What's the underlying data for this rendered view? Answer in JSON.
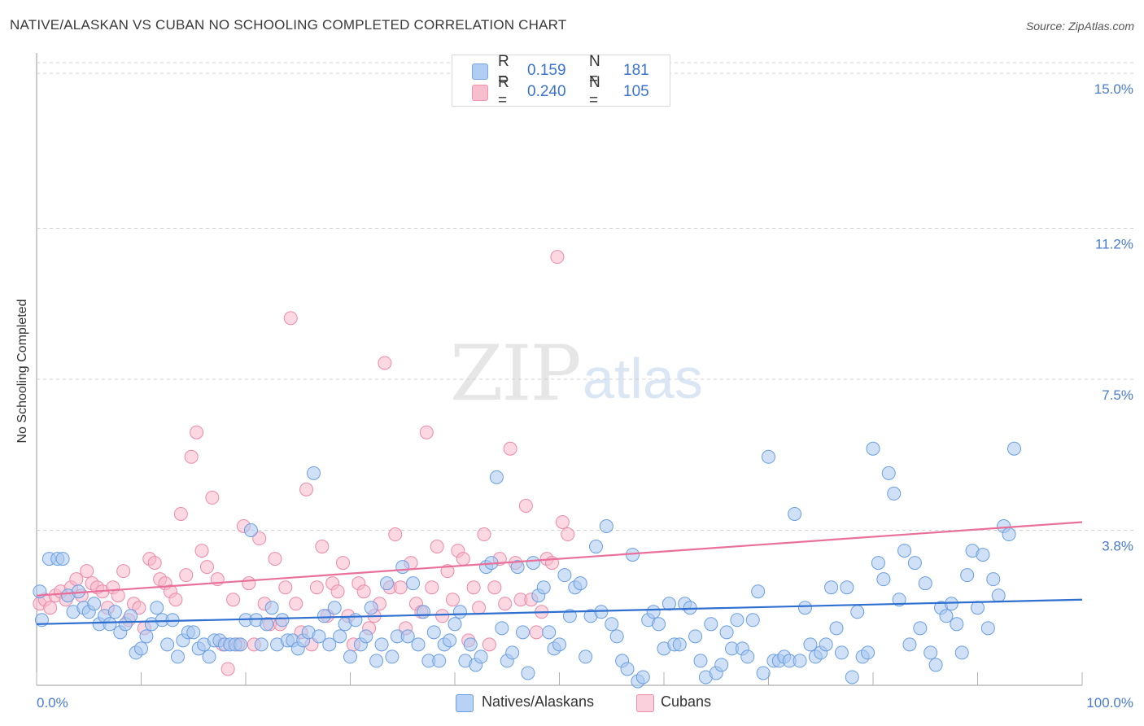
{
  "title": "NATIVE/ALASKAN VS CUBAN NO SCHOOLING COMPLETED CORRELATION CHART",
  "source": "Source: ZipAtlas.com",
  "watermark": {
    "left": "ZIP",
    "right": "atlas"
  },
  "legend": {
    "rows": [
      {
        "r_label": "R =",
        "r_value": "0.159",
        "n_label": "N =",
        "n_value": "181",
        "color": "#a9c8f0"
      },
      {
        "r_label": "R =",
        "r_value": "0.240",
        "n_label": "N =",
        "n_value": "105",
        "color": "#f7b8cb"
      }
    ]
  },
  "bottom_legend": [
    "Natives/Alaskans",
    "Cubans"
  ],
  "chart_data": {
    "type": "scatter",
    "title": "NATIVE/ALASKAN VS CUBAN NO SCHOOLING COMPLETED CORRELATION CHART",
    "xlabel": "",
    "ylabel": "No Schooling Completed",
    "xlim": [
      0,
      100
    ],
    "ylim": [
      0,
      15.5
    ],
    "y_ticks": [
      3.8,
      7.5,
      11.2,
      15.0
    ],
    "y_tick_labels": [
      "3.8%",
      "7.5%",
      "11.2%",
      "15.0%"
    ],
    "x_tick_labels": [
      "0.0%",
      "100.0%"
    ],
    "grid": "dashed horizontal",
    "legend_position": "top-center",
    "colors": {
      "natives": "#6a9ee0",
      "natives_fill": "#a9c8f0",
      "cubans": "#ec8aa8",
      "cubans_fill": "#f7b8cb",
      "natives_line": "#2e6fd0",
      "cubans_line": "#e8709a"
    },
    "series": [
      {
        "name": "Natives/Alaskans",
        "trend": [
          [
            0,
            1.5
          ],
          [
            100,
            2.1
          ]
        ],
        "points": [
          [
            0.3,
            2.3
          ],
          [
            0.5,
            1.6
          ],
          [
            1.2,
            3.1
          ],
          [
            2,
            3.1
          ],
          [
            2.5,
            3.1
          ],
          [
            3,
            2.2
          ],
          [
            3.5,
            1.8
          ],
          [
            4,
            2.3
          ],
          [
            4.5,
            1.9
          ],
          [
            5,
            1.8
          ],
          [
            5.5,
            2.0
          ],
          [
            6,
            1.5
          ],
          [
            6.5,
            1.7
          ],
          [
            7,
            1.5
          ],
          [
            7.5,
            1.8
          ],
          [
            8,
            1.3
          ],
          [
            8.5,
            1.5
          ],
          [
            9,
            1.7
          ],
          [
            9.5,
            0.8
          ],
          [
            10,
            0.9
          ],
          [
            10.5,
            1.2
          ],
          [
            11,
            1.5
          ],
          [
            11.5,
            1.9
          ],
          [
            12,
            1.6
          ],
          [
            12.5,
            1.0
          ],
          [
            13,
            1.6
          ],
          [
            13.5,
            0.7
          ],
          [
            14,
            1.1
          ],
          [
            14.5,
            1.3
          ],
          [
            15,
            1.3
          ],
          [
            15.5,
            0.9
          ],
          [
            16,
            1.0
          ],
          [
            16.5,
            0.7
          ],
          [
            17,
            1.1
          ],
          [
            17.5,
            1.1
          ],
          [
            18,
            1.0
          ],
          [
            18.5,
            1.0
          ],
          [
            19,
            1.0
          ],
          [
            19.5,
            1.0
          ],
          [
            20,
            1.6
          ],
          [
            20.5,
            3.8
          ],
          [
            21,
            1.6
          ],
          [
            21.5,
            1.0
          ],
          [
            22,
            1.5
          ],
          [
            22.5,
            1.9
          ],
          [
            23,
            1.0
          ],
          [
            23.5,
            1.6
          ],
          [
            24,
            1.1
          ],
          [
            24.5,
            1.1
          ],
          [
            25,
            0.9
          ],
          [
            25.5,
            1.1
          ],
          [
            26,
            1.3
          ],
          [
            26.5,
            5.2
          ],
          [
            27,
            1.2
          ],
          [
            27.5,
            1.7
          ],
          [
            28,
            1.0
          ],
          [
            28.5,
            1.9
          ],
          [
            29,
            1.2
          ],
          [
            29.5,
            1.5
          ],
          [
            30,
            0.7
          ],
          [
            30.5,
            1.6
          ],
          [
            31,
            1.0
          ],
          [
            31.5,
            1.2
          ],
          [
            32,
            1.9
          ],
          [
            32.5,
            0.6
          ],
          [
            33,
            1.0
          ],
          [
            33.5,
            2.5
          ],
          [
            34,
            0.7
          ],
          [
            34.5,
            1.2
          ],
          [
            35,
            2.9
          ],
          [
            35.5,
            1.2
          ],
          [
            36,
            2.5
          ],
          [
            36.5,
            1.0
          ],
          [
            37,
            1.8
          ],
          [
            37.5,
            0.6
          ],
          [
            38,
            1.3
          ],
          [
            38.5,
            0.6
          ],
          [
            39,
            1.0
          ],
          [
            39.5,
            1.1
          ],
          [
            40,
            1.5
          ],
          [
            40.5,
            1.8
          ],
          [
            41,
            0.6
          ],
          [
            41.5,
            1.0
          ],
          [
            42,
            0.5
          ],
          [
            42.5,
            0.7
          ],
          [
            43,
            2.9
          ],
          [
            43.5,
            3.0
          ],
          [
            44,
            5.1
          ],
          [
            44.5,
            1.4
          ],
          [
            45,
            0.6
          ],
          [
            45.5,
            0.8
          ],
          [
            46,
            2.9
          ],
          [
            46.5,
            1.3
          ],
          [
            47,
            0.3
          ],
          [
            47.5,
            3.0
          ],
          [
            48,
            2.2
          ],
          [
            48.5,
            2.4
          ],
          [
            49,
            1.3
          ],
          [
            49.5,
            0.9
          ],
          [
            50,
            1.0
          ],
          [
            50.5,
            2.7
          ],
          [
            51,
            1.7
          ],
          [
            51.5,
            2.4
          ],
          [
            52,
            2.5
          ],
          [
            52.5,
            0.7
          ],
          [
            53,
            1.7
          ],
          [
            53.5,
            3.4
          ],
          [
            54,
            1.8
          ],
          [
            54.5,
            3.9
          ],
          [
            55,
            1.5
          ],
          [
            55.5,
            1.2
          ],
          [
            56,
            0.6
          ],
          [
            56.5,
            0.4
          ],
          [
            57,
            3.2
          ],
          [
            57.5,
            0.1
          ],
          [
            58,
            0.2
          ],
          [
            58.5,
            1.6
          ],
          [
            59,
            1.8
          ],
          [
            59.5,
            1.5
          ],
          [
            60,
            0.9
          ],
          [
            60.5,
            2.0
          ],
          [
            61,
            1.0
          ],
          [
            61.5,
            1.0
          ],
          [
            62,
            2.0
          ],
          [
            62.5,
            1.9
          ],
          [
            63,
            1.2
          ],
          [
            63.5,
            0.6
          ],
          [
            64,
            0.2
          ],
          [
            64.5,
            1.5
          ],
          [
            65,
            0.3
          ],
          [
            65.5,
            0.5
          ],
          [
            66,
            1.3
          ],
          [
            66.5,
            0.9
          ],
          [
            67,
            1.6
          ],
          [
            67.5,
            0.9
          ],
          [
            68,
            0.7
          ],
          [
            68.5,
            1.6
          ],
          [
            69,
            2.3
          ],
          [
            69.5,
            0.3
          ],
          [
            70,
            5.6
          ],
          [
            70.5,
            0.6
          ],
          [
            71,
            0.6
          ],
          [
            71.5,
            0.7
          ],
          [
            72,
            0.6
          ],
          [
            72.5,
            4.2
          ],
          [
            73,
            0.6
          ],
          [
            73.5,
            1.9
          ],
          [
            74,
            1.0
          ],
          [
            74.5,
            0.7
          ],
          [
            75,
            0.8
          ],
          [
            75.5,
            1.0
          ],
          [
            76,
            2.4
          ],
          [
            76.5,
            1.4
          ],
          [
            77,
            0.8
          ],
          [
            77.5,
            2.4
          ],
          [
            78,
            0.2
          ],
          [
            78.5,
            1.8
          ],
          [
            79,
            0.7
          ],
          [
            79.5,
            0.8
          ],
          [
            80,
            5.8
          ],
          [
            80.5,
            3.0
          ],
          [
            81,
            2.6
          ],
          [
            81.5,
            5.2
          ],
          [
            82,
            4.7
          ],
          [
            82.5,
            2.1
          ],
          [
            83,
            3.3
          ],
          [
            83.5,
            1.0
          ],
          [
            84,
            3.0
          ],
          [
            84.5,
            1.4
          ],
          [
            85,
            2.5
          ],
          [
            85.5,
            0.8
          ],
          [
            86,
            0.5
          ],
          [
            86.5,
            1.9
          ],
          [
            87,
            1.7
          ],
          [
            87.5,
            2.0
          ],
          [
            88,
            1.5
          ],
          [
            88.5,
            0.8
          ],
          [
            89,
            2.7
          ],
          [
            89.5,
            3.3
          ],
          [
            90,
            1.9
          ],
          [
            90.5,
            3.2
          ],
          [
            91,
            1.4
          ],
          [
            91.5,
            2.6
          ],
          [
            92,
            2.2
          ],
          [
            92.5,
            3.9
          ],
          [
            93,
            3.7
          ],
          [
            93.5,
            5.8
          ]
        ]
      },
      {
        "name": "Cubans",
        "trend": [
          [
            0,
            2.2
          ],
          [
            100,
            4.0
          ]
        ],
        "points": [
          [
            0.3,
            2.0
          ],
          [
            0.8,
            2.1
          ],
          [
            1.3,
            1.9
          ],
          [
            1.8,
            2.2
          ],
          [
            2.3,
            2.3
          ],
          [
            2.8,
            2.1
          ],
          [
            3.3,
            2.4
          ],
          [
            3.8,
            2.6
          ],
          [
            4.3,
            2.2
          ],
          [
            4.8,
            2.8
          ],
          [
            5.3,
            2.5
          ],
          [
            5.8,
            2.4
          ],
          [
            6.3,
            2.3
          ],
          [
            6.8,
            1.9
          ],
          [
            7.3,
            2.4
          ],
          [
            7.8,
            2.2
          ],
          [
            8.3,
            2.8
          ],
          [
            8.8,
            1.6
          ],
          [
            9.3,
            2.0
          ],
          [
            9.8,
            1.9
          ],
          [
            10.3,
            1.4
          ],
          [
            10.8,
            3.1
          ],
          [
            11.3,
            3.0
          ],
          [
            11.8,
            2.6
          ],
          [
            12.3,
            2.5
          ],
          [
            12.8,
            2.3
          ],
          [
            13.3,
            2.1
          ],
          [
            13.8,
            4.2
          ],
          [
            14.3,
            2.7
          ],
          [
            14.8,
            5.6
          ],
          [
            15.3,
            6.2
          ],
          [
            15.8,
            3.3
          ],
          [
            16.3,
            2.9
          ],
          [
            16.8,
            4.6
          ],
          [
            17.3,
            2.6
          ],
          [
            17.8,
            1.0
          ],
          [
            18.3,
            0.4
          ],
          [
            18.8,
            2.1
          ],
          [
            19.3,
            1.0
          ],
          [
            19.8,
            3.9
          ],
          [
            20.3,
            2.5
          ],
          [
            20.8,
            1.0
          ],
          [
            21.3,
            3.6
          ],
          [
            21.8,
            2.0
          ],
          [
            22.3,
            1.5
          ],
          [
            22.8,
            3.1
          ],
          [
            23.3,
            1.5
          ],
          [
            23.8,
            2.4
          ],
          [
            24.3,
            9.0
          ],
          [
            24.8,
            2.0
          ],
          [
            25.3,
            1.3
          ],
          [
            25.8,
            4.8
          ],
          [
            26.3,
            1.0
          ],
          [
            26.8,
            2.4
          ],
          [
            27.3,
            3.4
          ],
          [
            27.8,
            1.7
          ],
          [
            28.3,
            2.5
          ],
          [
            28.8,
            2.3
          ],
          [
            29.3,
            3.0
          ],
          [
            29.8,
            1.7
          ],
          [
            30.3,
            1.0
          ],
          [
            30.8,
            2.5
          ],
          [
            31.3,
            2.3
          ],
          [
            31.8,
            1.4
          ],
          [
            32.3,
            1.7
          ],
          [
            32.8,
            2.0
          ],
          [
            33.3,
            7.9
          ],
          [
            33.8,
            2.4
          ],
          [
            34.3,
            3.7
          ],
          [
            34.8,
            2.4
          ],
          [
            35.3,
            1.4
          ],
          [
            35.8,
            3.0
          ],
          [
            36.3,
            2.0
          ],
          [
            36.8,
            1.8
          ],
          [
            37.3,
            6.2
          ],
          [
            37.8,
            2.4
          ],
          [
            38.3,
            3.4
          ],
          [
            38.8,
            1.7
          ],
          [
            39.3,
            2.8
          ],
          [
            39.8,
            2.1
          ],
          [
            40.3,
            3.3
          ],
          [
            40.8,
            3.1
          ],
          [
            41.3,
            1.1
          ],
          [
            41.8,
            2.4
          ],
          [
            42.3,
            1.9
          ],
          [
            42.8,
            3.7
          ],
          [
            43.3,
            1.0
          ],
          [
            43.8,
            2.4
          ],
          [
            44.3,
            3.1
          ],
          [
            44.8,
            2.0
          ],
          [
            45.3,
            5.8
          ],
          [
            45.8,
            3.0
          ],
          [
            46.3,
            2.1
          ],
          [
            46.8,
            4.4
          ],
          [
            47.3,
            2.1
          ],
          [
            47.8,
            1.3
          ],
          [
            48.3,
            1.8
          ],
          [
            48.8,
            3.1
          ],
          [
            49.3,
            3.0
          ],
          [
            49.8,
            10.5
          ],
          [
            50.3,
            4.0
          ],
          [
            50.8,
            3.7
          ]
        ]
      }
    ]
  }
}
